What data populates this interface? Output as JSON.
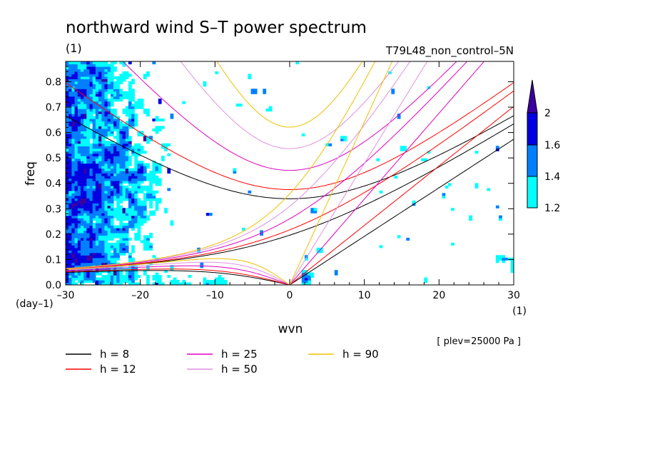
{
  "chart_data": {
    "type": "heatmap",
    "title": "northward wind S–T power spectrum",
    "subtitle_left": "(1)",
    "subtitle_right": "T79L48_non_control–5N",
    "xlabel": "wvn",
    "ylabel": "freq",
    "x_unit": "(1)",
    "y_unit": "(day–1)",
    "level_note": "[ plev=25000 Pa ]",
    "xlim": [
      -30,
      30
    ],
    "ylim": [
      0,
      0.88
    ],
    "x_ticks": [
      -30,
      -20,
      -10,
      0,
      10,
      20,
      30
    ],
    "x_tick_labels": [
      "–30",
      "–20",
      "–10",
      "0",
      "10",
      "20",
      "30"
    ],
    "y_ticks": [
      0,
      0.1,
      0.2,
      0.3,
      0.4,
      0.5,
      0.6,
      0.7,
      0.8
    ],
    "y_tick_labels": [
      "0.0",
      "0.1",
      "0.2",
      "0.3",
      "0.4",
      "0.5",
      "0.6",
      "0.7",
      "0.8"
    ],
    "colorbar": {
      "levels": [
        1.2,
        1.4,
        1.6,
        2
      ],
      "level_labels": [
        "1.2",
        "1.4",
        "1.6",
        "2"
      ],
      "colors": [
        "#00ffff",
        "#0080ff",
        "#0000e0",
        "#3c00a0"
      ]
    },
    "dispersion_curves": [
      {
        "name": "h =  8",
        "h": 8,
        "color": "#000000"
      },
      {
        "name": "h = 12",
        "h": 12,
        "color": "#ff0000"
      },
      {
        "name": "h = 25",
        "h": 25,
        "color": "#e000c0"
      },
      {
        "name": "h = 50",
        "h": 50,
        "color": "#e090e0"
      },
      {
        "name": "h = 90",
        "h": 90,
        "color": "#f0c000"
      }
    ],
    "curve_families": [
      "kelvin",
      "rossby-gravity",
      "inertia-gravity",
      "rossby"
    ],
    "grid": false,
    "legend_position": "bottom-left"
  }
}
